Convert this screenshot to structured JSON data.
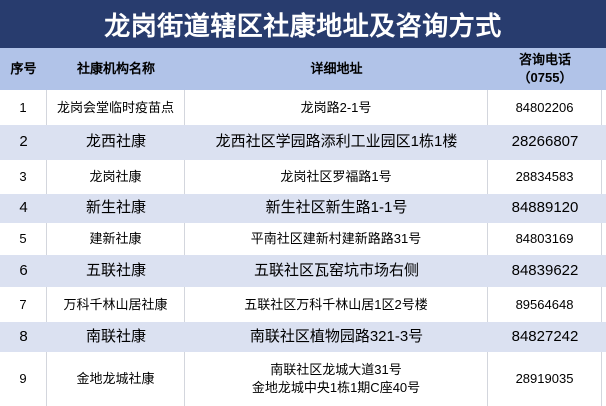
{
  "title": "龙岗街道辖区社康地址及咨询方式",
  "colors": {
    "title_bar_bg": "#283C6E",
    "title_text": "#FFFFFF",
    "header_bg": "#B1C3E8",
    "alt_row_bg": "#DBE1F1",
    "row_bg": "#FFFFFF",
    "grid_line": "#D3D6DD",
    "body_text": "#000000"
  },
  "table": {
    "columns": [
      "序号",
      "社康机构名称",
      "详细地址",
      "咨询电话\n（0755）"
    ],
    "rows": [
      {
        "no": "1",
        "name": "龙岗会堂临时疫苗点",
        "address": "龙岗路2-1号",
        "phone": "84802206"
      },
      {
        "no": "2",
        "name": "龙西社康",
        "address": "龙西社区学园路添利工业园区1栋1楼",
        "phone": "28266807"
      },
      {
        "no": "3",
        "name": "龙岗社康",
        "address": "龙岗社区罗福路1号",
        "phone": "28834583"
      },
      {
        "no": "4",
        "name": "新生社康",
        "address": "新生社区新生路1-1号",
        "phone": "84889120"
      },
      {
        "no": "5",
        "name": "建新社康",
        "address": "平南社区建新村建新路路31号",
        "phone": "84803169"
      },
      {
        "no": "6",
        "name": "五联社康",
        "address": "五联社区瓦窑坑市场右侧",
        "phone": "84839622"
      },
      {
        "no": "7",
        "name": "万科千林山居社康",
        "address": "五联社区万科千林山居1区2号楼",
        "phone": "89564648"
      },
      {
        "no": "8",
        "name": "南联社康",
        "address": "南联社区植物园路321-3号",
        "phone": "84827242"
      },
      {
        "no": "9",
        "name": "金地龙城社康",
        "address": "南联社区龙城大道31号\n金地龙城中央1栋1期C座40号",
        "phone": "28919035"
      }
    ]
  }
}
